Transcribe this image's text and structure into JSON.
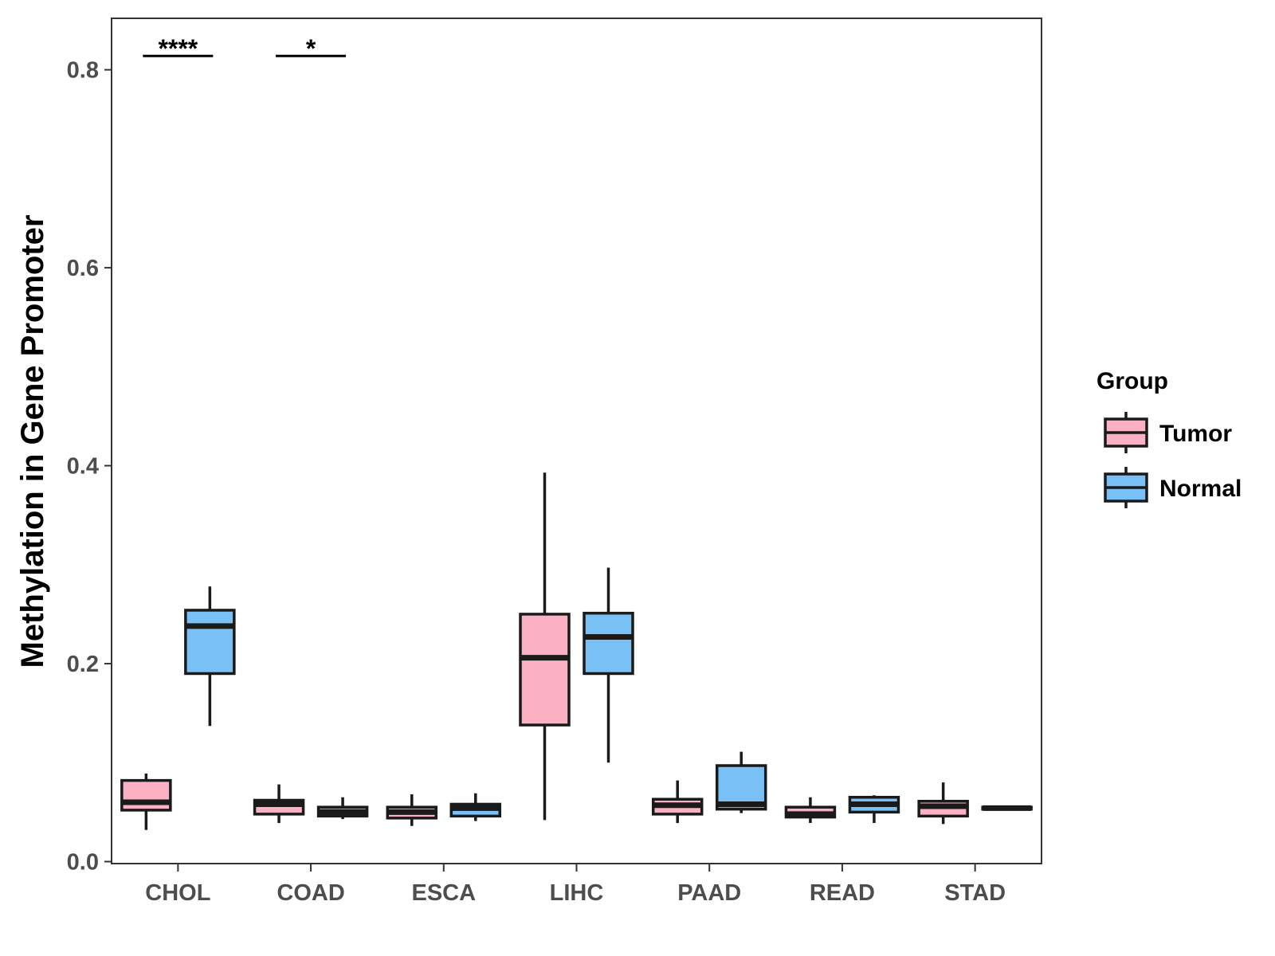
{
  "chart_data": {
    "type": "boxplot",
    "title": "",
    "xlabel": "",
    "ylabel": "Methylation in Gene Promoter",
    "ylim": [
      -0.002,
      0.852
    ],
    "yticks": [
      "0.0",
      "0.2",
      "0.4",
      "0.6",
      "0.8"
    ],
    "ytick_values": [
      0.0,
      0.2,
      0.4,
      0.6,
      0.8
    ],
    "categories": [
      "CHOL",
      "COAD",
      "ESCA",
      "LIHC",
      "PAAD",
      "READ",
      "STAD"
    ],
    "grid": false,
    "legend": {
      "title": "Group",
      "position": "right",
      "entries": [
        {
          "name": "Tumor",
          "color": "#FBB1C3"
        },
        {
          "name": "Normal",
          "color": "#79C0F7"
        }
      ]
    },
    "series": [
      {
        "name": "Tumor",
        "color": "#FBB1C3",
        "boxes": [
          {
            "category": "CHOL",
            "min": 0.032,
            "q1": 0.052,
            "median": 0.06,
            "q3": 0.082,
            "max": 0.089
          },
          {
            "category": "COAD",
            "min": 0.039,
            "q1": 0.048,
            "median": 0.058,
            "q3": 0.062,
            "max": 0.078
          },
          {
            "category": "ESCA",
            "min": 0.036,
            "q1": 0.044,
            "median": 0.05,
            "q3": 0.055,
            "max": 0.068
          },
          {
            "category": "LIHC",
            "min": 0.042,
            "q1": 0.138,
            "median": 0.206,
            "q3": 0.25,
            "max": 0.393
          },
          {
            "category": "PAAD",
            "min": 0.039,
            "q1": 0.048,
            "median": 0.057,
            "q3": 0.063,
            "max": 0.082
          },
          {
            "category": "READ",
            "min": 0.039,
            "q1": 0.045,
            "median": 0.048,
            "q3": 0.055,
            "max": 0.065
          },
          {
            "category": "STAD",
            "min": 0.038,
            "q1": 0.046,
            "median": 0.056,
            "q3": 0.061,
            "max": 0.08
          }
        ]
      },
      {
        "name": "Normal",
        "color": "#79C0F7",
        "boxes": [
          {
            "category": "CHOL",
            "min": 0.137,
            "q1": 0.19,
            "median": 0.238,
            "q3": 0.254,
            "max": 0.278
          },
          {
            "category": "COAD",
            "min": 0.043,
            "q1": 0.046,
            "median": 0.05,
            "q3": 0.055,
            "max": 0.065
          },
          {
            "category": "ESCA",
            "min": 0.041,
            "q1": 0.046,
            "median": 0.054,
            "q3": 0.058,
            "max": 0.069
          },
          {
            "category": "LIHC",
            "min": 0.1,
            "q1": 0.19,
            "median": 0.227,
            "q3": 0.251,
            "max": 0.297
          },
          {
            "category": "PAAD",
            "min": 0.049,
            "q1": 0.053,
            "median": 0.058,
            "q3": 0.097,
            "max": 0.111
          },
          {
            "category": "READ",
            "min": 0.039,
            "q1": 0.05,
            "median": 0.058,
            "q3": 0.065,
            "max": 0.067
          },
          {
            "category": "STAD",
            "min": 0.053,
            "q1": 0.053,
            "median": 0.054,
            "q3": 0.055,
            "max": 0.055
          }
        ]
      }
    ],
    "annotations": [
      {
        "category": "CHOL",
        "label": "****",
        "y": 0.814
      },
      {
        "category": "COAD",
        "label": "*",
        "y": 0.814
      }
    ]
  }
}
